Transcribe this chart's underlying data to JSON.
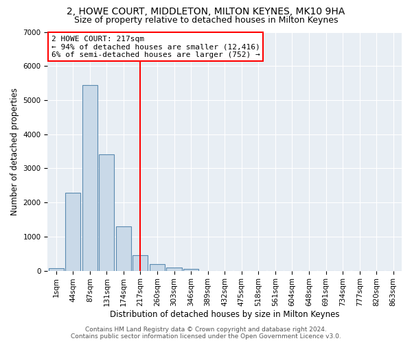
{
  "title": "2, HOWE COURT, MIDDLETON, MILTON KEYNES, MK10 9HA",
  "subtitle": "Size of property relative to detached houses in Milton Keynes",
  "xlabel": "Distribution of detached houses by size in Milton Keynes",
  "ylabel": "Number of detached properties",
  "categories": [
    "1sqm",
    "44sqm",
    "87sqm",
    "131sqm",
    "174sqm",
    "217sqm",
    "260sqm",
    "303sqm",
    "346sqm",
    "389sqm",
    "432sqm",
    "475sqm",
    "518sqm",
    "561sqm",
    "604sqm",
    "648sqm",
    "691sqm",
    "734sqm",
    "777sqm",
    "820sqm",
    "863sqm"
  ],
  "values": [
    75,
    2280,
    5450,
    3420,
    1300,
    460,
    200,
    100,
    60,
    0,
    0,
    0,
    0,
    0,
    0,
    0,
    0,
    0,
    0,
    0,
    0
  ],
  "bar_color": "#c9d9e8",
  "bar_edge_color": "#5a8ab0",
  "vline_x": 5,
  "vline_color": "red",
  "annotation_line1": "2 HOWE COURT: 217sqm",
  "annotation_line2": "← 94% of detached houses are smaller (12,416)",
  "annotation_line3": "6% of semi-detached houses are larger (752) →",
  "annotation_box_color": "white",
  "annotation_box_edge": "red",
  "ylim": [
    0,
    7000
  ],
  "yticks": [
    0,
    1000,
    2000,
    3000,
    4000,
    5000,
    6000,
    7000
  ],
  "footer": "Contains HM Land Registry data © Crown copyright and database right 2024.\nContains public sector information licensed under the Open Government Licence v3.0.",
  "title_fontsize": 10,
  "subtitle_fontsize": 9,
  "axis_label_fontsize": 8.5,
  "tick_fontsize": 7.5,
  "footer_fontsize": 6.5,
  "annotation_fontsize": 8,
  "background_color": "#e8eef4"
}
